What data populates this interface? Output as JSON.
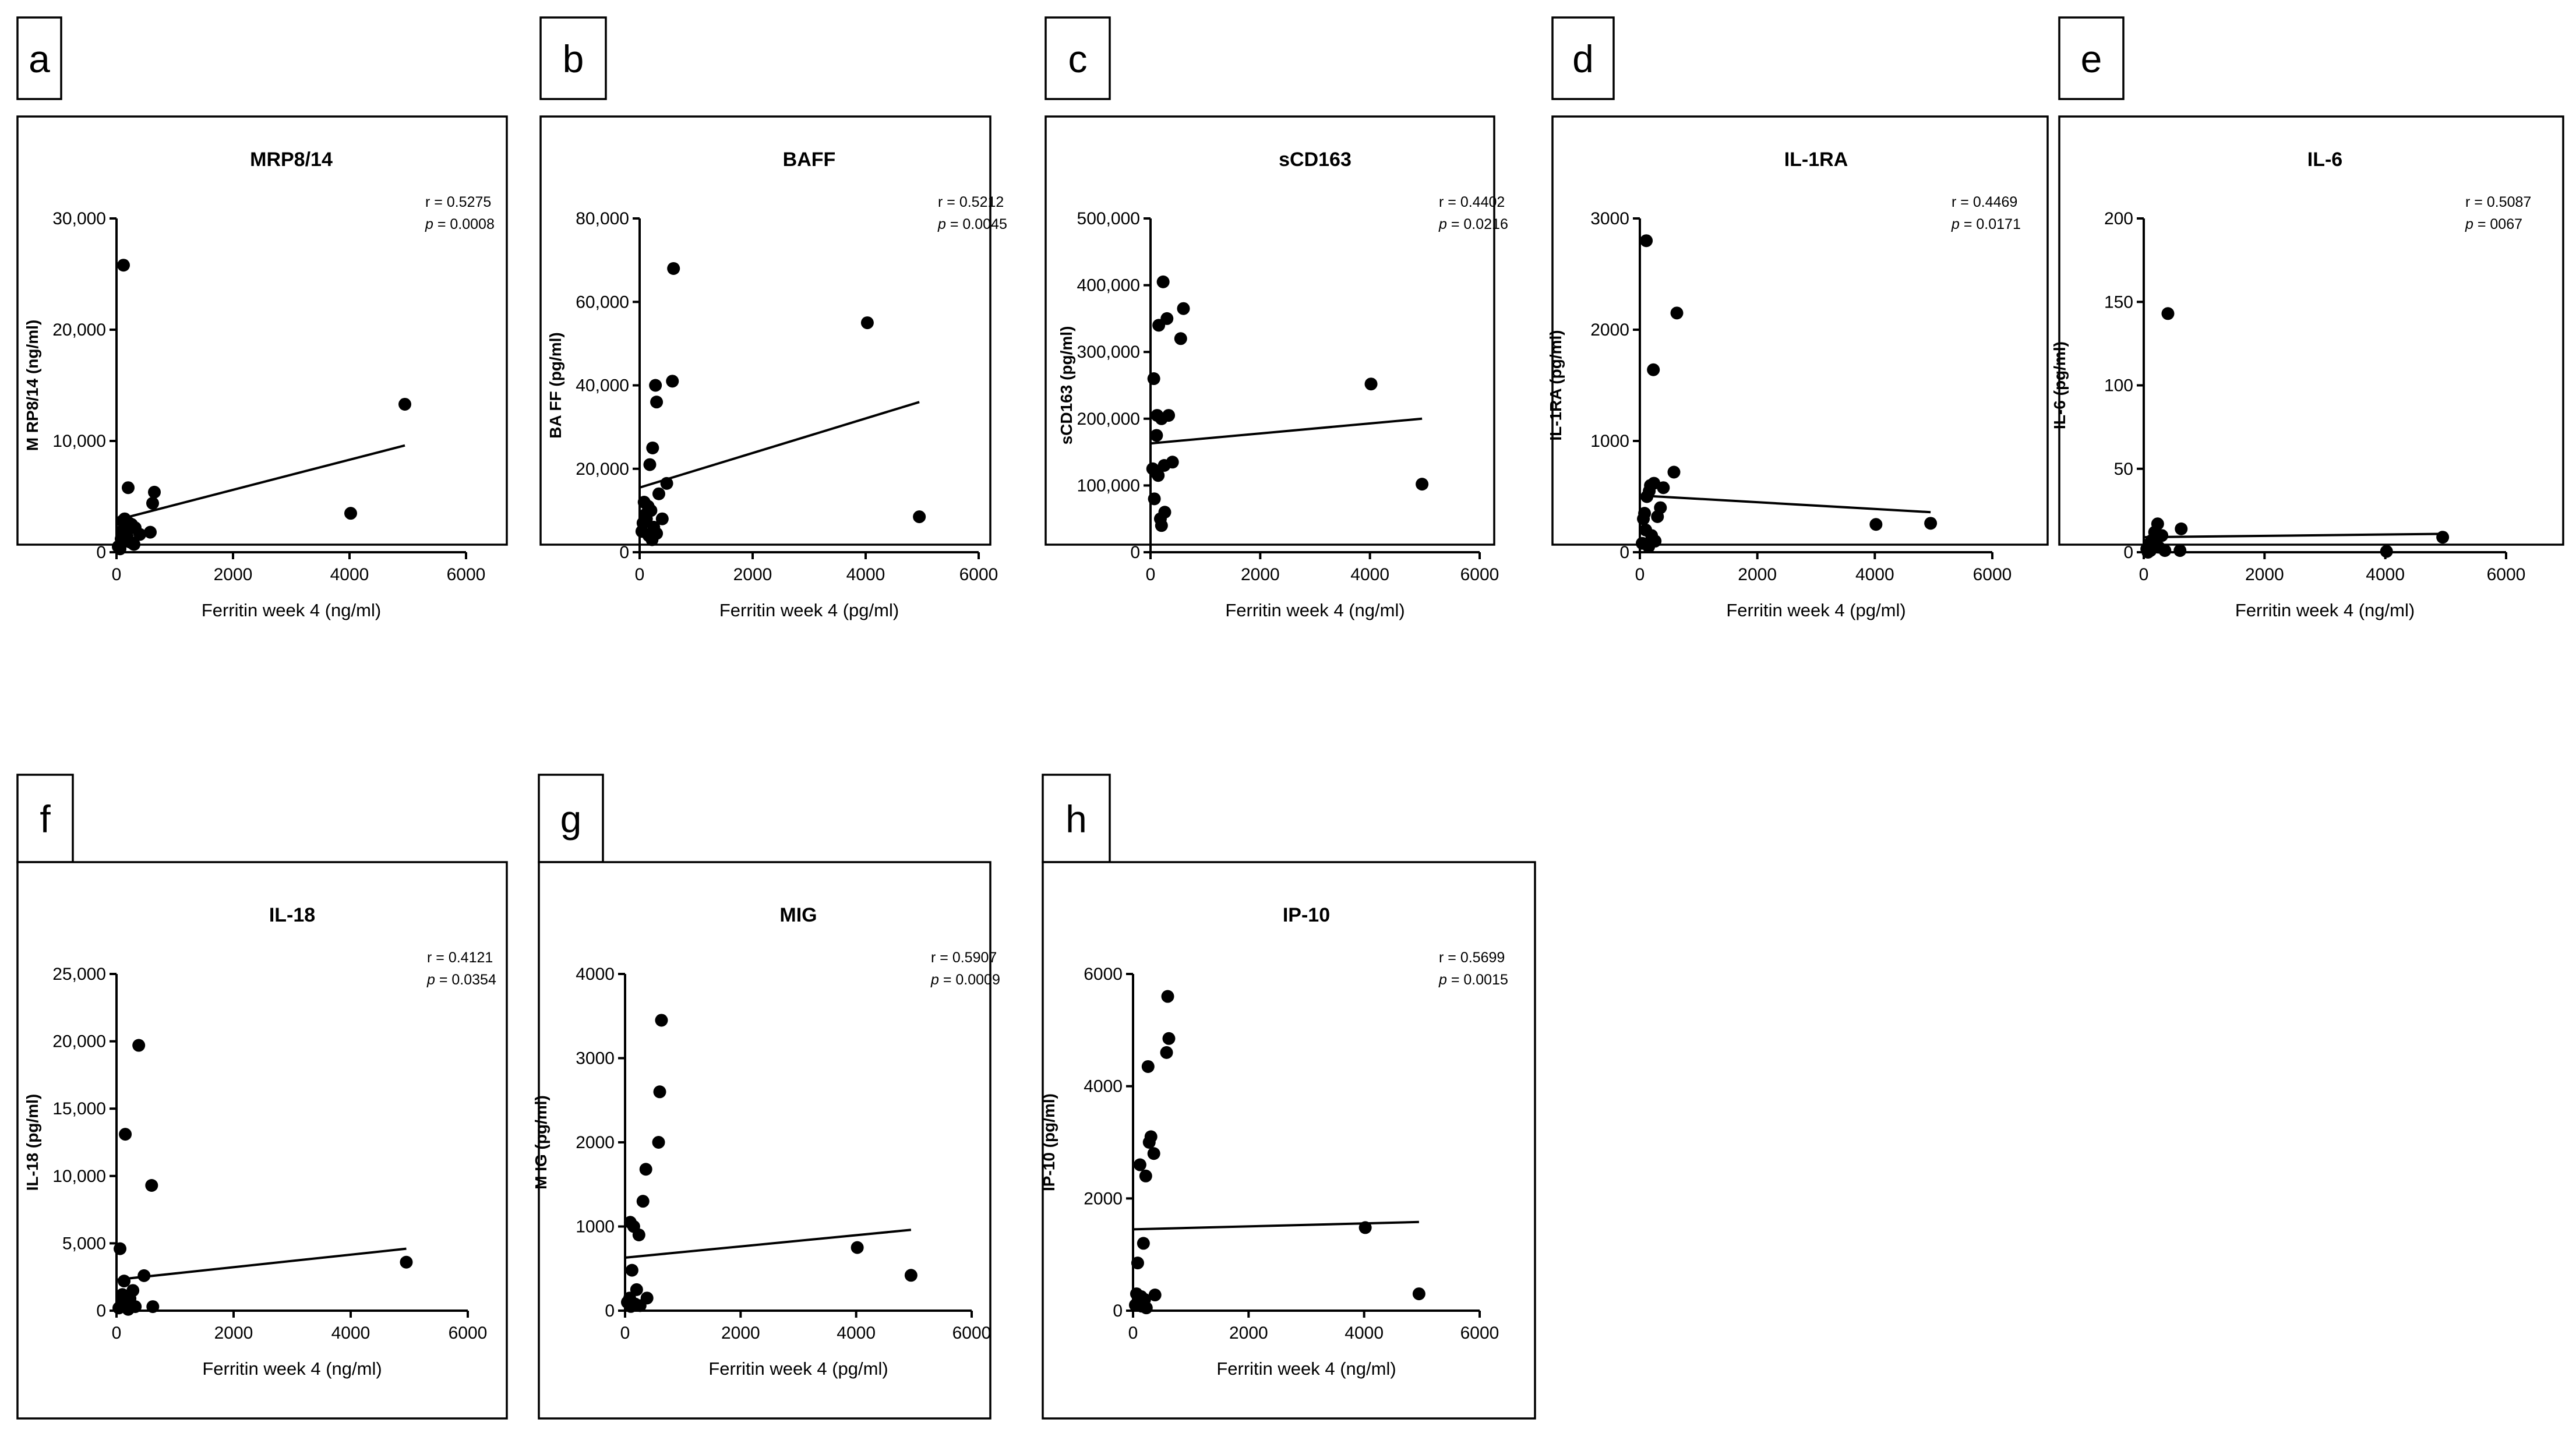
{
  "chart_data": [
    {
      "panel": "a",
      "type": "scatter",
      "title": "MRP8/14",
      "xlabel": "Ferritin week 4 (ng/ml)",
      "ylabel": "M RP8/14 (ng/ml)",
      "xlim": [
        0,
        6000
      ],
      "xticks": [
        0,
        2000,
        4000,
        6000
      ],
      "xtick_labels": [
        "0",
        "2000",
        "4000",
        "6000"
      ],
      "ylim": [
        0,
        30000
      ],
      "yticks": [
        0,
        10000,
        20000,
        30000
      ],
      "ytick_labels": [
        "0",
        "10,000",
        "20,000",
        "30,000"
      ],
      "stats": {
        "r_label": "r = 0.5275",
        "p_prefix": "p",
        "p_label": " = 0.0008"
      },
      "trend": {
        "x": [
          0,
          4950
        ],
        "y": [
          2900,
          9600
        ]
      },
      "points": {
        "x": [
          120,
          200,
          140,
          100,
          220,
          150,
          260,
          320,
          180,
          80,
          240,
          300,
          60,
          400,
          650,
          620,
          580,
          4020,
          4950,
          30,
          110,
          180
        ],
        "y": [
          25800,
          5800,
          3000,
          2800,
          2600,
          2400,
          2500,
          2200,
          1500,
          1200,
          900,
          700,
          300,
          1600,
          5400,
          4400,
          1800,
          3500,
          13300,
          500,
          2000,
          1000
        ]
      }
    },
    {
      "panel": "b",
      "type": "scatter",
      "title": "BAFF",
      "xlabel": "Ferritin week 4 (pg/ml)",
      "ylabel": "BA FF (pg/ml)",
      "xlim": [
        0,
        6000
      ],
      "xticks": [
        0,
        2000,
        4000,
        6000
      ],
      "xtick_labels": [
        "0",
        "2000",
        "4000",
        "6000"
      ],
      "ylim": [
        0,
        80000
      ],
      "yticks": [
        0,
        20000,
        40000,
        60000,
        80000
      ],
      "ytick_labels": [
        "0",
        "20,000",
        "40,000",
        "60,000",
        "80,000"
      ],
      "stats": {
        "r_label": "r = 0.5212",
        "p_prefix": "p",
        "p_label": " = 0.0045"
      },
      "trend": {
        "x": [
          0,
          4950
        ],
        "y": [
          15500,
          36000
        ]
      },
      "points": {
        "x": [
          600,
          4030,
          580,
          280,
          300,
          230,
          180,
          480,
          340,
          80,
          150,
          200,
          100,
          120,
          60,
          250,
          400,
          40,
          160,
          220,
          4950,
          300
        ],
        "y": [
          68000,
          55000,
          41000,
          40000,
          36000,
          25000,
          21000,
          16500,
          14000,
          12000,
          11000,
          10000,
          9000,
          8000,
          7000,
          6000,
          8000,
          5000,
          4000,
          3000,
          8500,
          4500
        ]
      }
    },
    {
      "panel": "c",
      "type": "scatter",
      "title": "sCD163",
      "xlabel": "Ferritin week 4 (ng/ml)",
      "ylabel": "sCD163 (pg/ml)",
      "xlim": [
        0,
        6000
      ],
      "xticks": [
        0,
        2000,
        4000,
        6000
      ],
      "xtick_labels": [
        "0",
        "2000",
        "4000",
        "6000"
      ],
      "ylim": [
        0,
        500000
      ],
      "yticks": [
        0,
        100000,
        200000,
        300000,
        400000,
        500000
      ],
      "ytick_labels": [
        "0",
        "100,000",
        "200,000",
        "300,000",
        "400,000",
        "500,000"
      ],
      "stats": {
        "r_label": "r = 0.4402",
        "p_prefix": "p",
        "p_label": " = 0.0216"
      },
      "trend": {
        "x": [
          0,
          4950
        ],
        "y": [
          163000,
          200000
        ]
      },
      "points": {
        "x": [
          230,
          600,
          300,
          150,
          550,
          60,
          120,
          200,
          330,
          110,
          400,
          250,
          40,
          90,
          140,
          260,
          180,
          4020,
          4950,
          70,
          200
        ],
        "y": [
          405000,
          365000,
          350000,
          340000,
          320000,
          260000,
          205000,
          200000,
          205000,
          175000,
          135000,
          130000,
          125000,
          120000,
          115000,
          60000,
          50000,
          252000,
          102000,
          80000,
          40000
        ]
      }
    },
    {
      "panel": "d",
      "type": "scatter",
      "title": "IL-1RA",
      "xlabel": "Ferritin week 4 (pg/ml)",
      "ylabel": "IL-1RA (pg/ml)",
      "xlim": [
        0,
        6000
      ],
      "xticks": [
        0,
        2000,
        4000,
        6000
      ],
      "xtick_labels": [
        "0",
        "2000",
        "4000",
        "6000"
      ],
      "ylim": [
        0,
        3000
      ],
      "yticks": [
        0,
        1000,
        2000,
        3000
      ],
      "ytick_labels": [
        "0",
        "1000",
        "2000",
        "3000"
      ],
      "stats": {
        "r_label": "r = 0.4469",
        "p_prefix": "p",
        "p_label": " = 0.0171"
      },
      "trend": {
        "x": [
          0,
          4950
        ],
        "y": [
          510,
          360
        ]
      },
      "points": {
        "x": [
          110,
          630,
          230,
          580,
          240,
          180,
          400,
          160,
          120,
          350,
          80,
          300,
          60,
          200,
          260,
          40,
          150,
          4020,
          4950,
          100
        ],
        "y": [
          2800,
          2150,
          1640,
          720,
          620,
          600,
          580,
          550,
          500,
          400,
          350,
          320,
          300,
          150,
          100,
          80,
          50,
          250,
          260,
          200
        ]
      }
    },
    {
      "panel": "e",
      "type": "scatter",
      "title": "IL-6",
      "xlabel": "Ferritin week 4 (ng/ml)",
      "ylabel": "IL-6 (pg/ml)",
      "xlim": [
        0,
        6000
      ],
      "xticks": [
        0,
        2000,
        4000,
        6000
      ],
      "xtick_labels": [
        "0",
        "2000",
        "4000",
        "6000"
      ],
      "ylim": [
        0,
        200
      ],
      "yticks": [
        0,
        50,
        100,
        150,
        200
      ],
      "ytick_labels": [
        "0",
        "50",
        "100",
        "150",
        "200"
      ],
      "stats": {
        "r_label": "r = 0.5087",
        "p_prefix": "p",
        "p_label": " = 0067"
      },
      "trend": {
        "x": [
          0,
          4950
        ],
        "y": [
          9,
          11
        ]
      },
      "points": {
        "x": [
          400,
          230,
          620,
          180,
          300,
          200,
          130,
          90,
          160,
          250,
          50,
          110,
          350,
          600,
          4020,
          4950,
          70
        ],
        "y": [
          143,
          17,
          14,
          12,
          10,
          8,
          7,
          5,
          4,
          3,
          2,
          1,
          1,
          1,
          0.5,
          9,
          0
        ]
      }
    },
    {
      "panel": "f",
      "type": "scatter",
      "title": "IL-18",
      "xlabel": "Ferritin week 4 (ng/ml)",
      "ylabel": "IL-18 (pg/ml)",
      "xlim": [
        0,
        6000
      ],
      "xticks": [
        0,
        2000,
        4000,
        6000
      ],
      "xtick_labels": [
        "0",
        "2000",
        "4000",
        "6000"
      ],
      "ylim": [
        0,
        25000
      ],
      "yticks": [
        0,
        5000,
        10000,
        15000,
        20000,
        25000
      ],
      "ytick_labels": [
        "0",
        "5,000",
        "10,000",
        "15,000",
        "20,000",
        "25,000"
      ],
      "stats": {
        "r_label": "r = 0.4121",
        "p_prefix": "p",
        "p_label": " = 0.0354"
      },
      "trend": {
        "x": [
          0,
          4950
        ],
        "y": [
          2300,
          4600
        ]
      },
      "points": {
        "x": [
          380,
          150,
          600,
          60,
          470,
          130,
          280,
          100,
          230,
          180,
          80,
          40,
          200,
          620,
          4950,
          120,
          320
        ],
        "y": [
          19700,
          13100,
          9300,
          4600,
          2600,
          2200,
          1500,
          1200,
          900,
          600,
          400,
          200,
          100,
          300,
          3600,
          700,
          300
        ]
      }
    },
    {
      "panel": "g",
      "type": "scatter",
      "title": "MIG",
      "xlabel": "Ferritin week 4 (pg/ml)",
      "ylabel": "M IG (pg/ml)",
      "xlim": [
        0,
        6000
      ],
      "xticks": [
        0,
        2000,
        4000,
        6000
      ],
      "xtick_labels": [
        "0",
        "2000",
        "4000",
        "6000"
      ],
      "ylim": [
        0,
        4000
      ],
      "yticks": [
        0,
        1000,
        2000,
        3000,
        4000
      ],
      "ytick_labels": [
        "0",
        "1000",
        "2000",
        "3000",
        "4000"
      ],
      "stats": {
        "r_label": "r = 0.5907",
        "p_prefix": "p",
        "p_label": " = 0.0009"
      },
      "trend": {
        "x": [
          0,
          4950
        ],
        "y": [
          630,
          960
        ]
      },
      "points": {
        "x": [
          630,
          600,
          580,
          360,
          310,
          90,
          150,
          240,
          120,
          200,
          80,
          40,
          170,
          260,
          4020,
          4950,
          100,
          380
        ],
        "y": [
          3450,
          2600,
          2000,
          1680,
          1300,
          1050,
          1000,
          900,
          480,
          250,
          150,
          100,
          80,
          60,
          750,
          420,
          50,
          150
        ]
      }
    },
    {
      "panel": "h",
      "type": "scatter",
      "title": "IP-10",
      "xlabel": "Ferritin week 4 (ng/ml)",
      "ylabel": "IP-10 (pg/ml)",
      "xlim": [
        0,
        6000
      ],
      "xticks": [
        0,
        2000,
        4000,
        6000
      ],
      "xtick_labels": [
        "0",
        "2000",
        "4000",
        "6000"
      ],
      "ylim": [
        0,
        6000
      ],
      "yticks": [
        0,
        2000,
        4000,
        6000
      ],
      "ytick_labels": [
        "0",
        "2000",
        "4000",
        "6000"
      ],
      "stats": {
        "r_label": "r = 0.5699",
        "p_prefix": "p",
        "p_label": " = 0.0015"
      },
      "trend": {
        "x": [
          0,
          4950
        ],
        "y": [
          1450,
          1580
        ]
      },
      "points": {
        "x": [
          600,
          620,
          580,
          260,
          310,
          280,
          360,
          120,
          220,
          180,
          80,
          60,
          140,
          200,
          100,
          40,
          230,
          4020,
          4950,
          150,
          380
        ],
        "y": [
          5600,
          4850,
          4600,
          4350,
          3100,
          3000,
          2800,
          2600,
          2400,
          1200,
          850,
          300,
          250,
          200,
          150,
          100,
          50,
          1480,
          300,
          80,
          280
        ]
      }
    }
  ]
}
